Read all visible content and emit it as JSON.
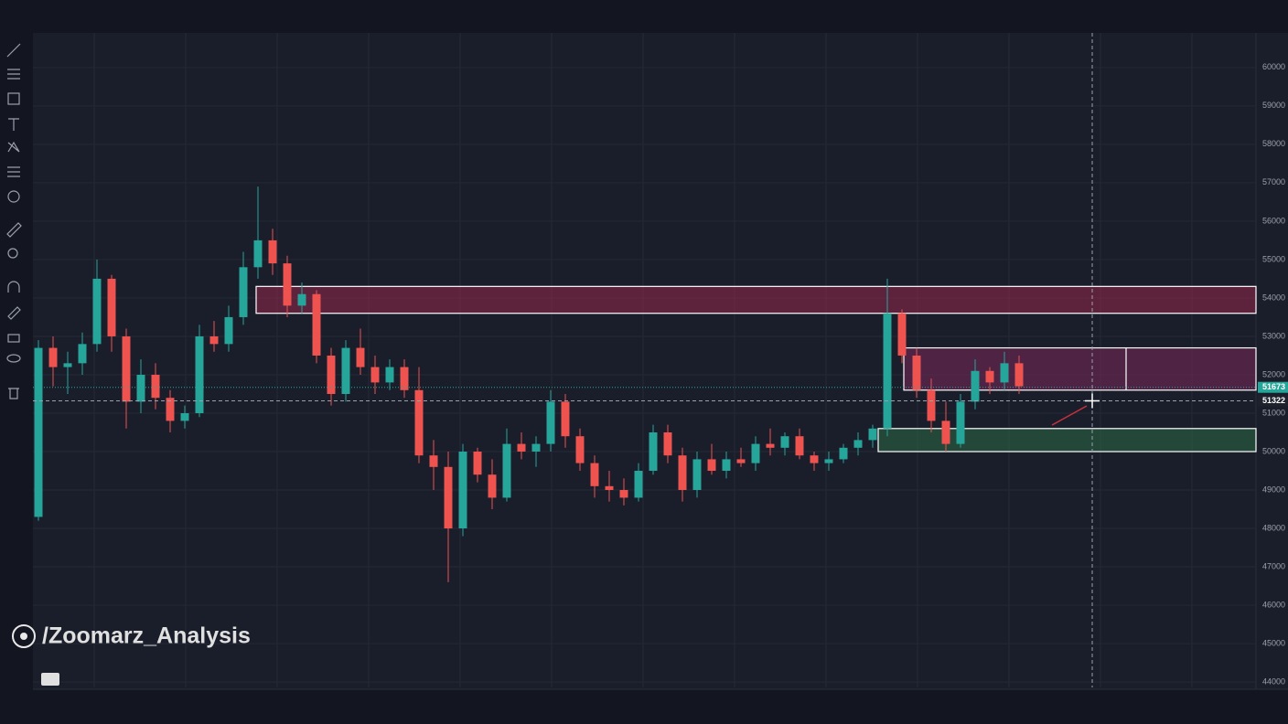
{
  "chart_data": {
    "type": "candlestick",
    "watermark": "/Zoomarz_Analysis",
    "up_color": "#26a69a",
    "down_color": "#ef5350",
    "grid": true,
    "ylim": [
      43860,
      60900
    ],
    "yticks": [
      44000,
      45000,
      46000,
      47000,
      48000,
      49000,
      50000,
      51000,
      52000,
      53000,
      54000,
      55000,
      56000,
      57000,
      58000,
      59000,
      60000
    ],
    "price_labels": [
      {
        "value": 51673,
        "color": "#26a69a"
      },
      {
        "value": 51322,
        "color": "#1e222d"
      }
    ],
    "zones": [
      {
        "top": 54300,
        "bottom": 53600,
        "color": "#b02a55"
      },
      {
        "top": 52700,
        "bottom": 51600,
        "color": "#8e2a63"
      },
      {
        "top": 50600,
        "bottom": 50000,
        "color": "#2e7a4a"
      }
    ],
    "candles": [
      {
        "o": 48300,
        "h": 52900,
        "l": 48200,
        "c": 52700
      },
      {
        "o": 52700,
        "h": 53000,
        "l": 51700,
        "c": 52200
      },
      {
        "o": 52200,
        "h": 52600,
        "l": 51500,
        "c": 52300
      },
      {
        "o": 52300,
        "h": 53100,
        "l": 52000,
        "c": 52800
      },
      {
        "o": 52800,
        "h": 55000,
        "l": 52600,
        "c": 54500
      },
      {
        "o": 54500,
        "h": 54600,
        "l": 52600,
        "c": 53000
      },
      {
        "o": 53000,
        "h": 53200,
        "l": 50600,
        "c": 51300
      },
      {
        "o": 51300,
        "h": 52400,
        "l": 51000,
        "c": 52000
      },
      {
        "o": 52000,
        "h": 52300,
        "l": 51100,
        "c": 51400
      },
      {
        "o": 51400,
        "h": 51600,
        "l": 50500,
        "c": 50800
      },
      {
        "o": 50800,
        "h": 51200,
        "l": 50600,
        "c": 51000
      },
      {
        "o": 51000,
        "h": 53300,
        "l": 50900,
        "c": 53000
      },
      {
        "o": 53000,
        "h": 53400,
        "l": 52600,
        "c": 52800
      },
      {
        "o": 52800,
        "h": 53800,
        "l": 52600,
        "c": 53500
      },
      {
        "o": 53500,
        "h": 55200,
        "l": 53300,
        "c": 54800
      },
      {
        "o": 54800,
        "h": 56900,
        "l": 54500,
        "c": 55500
      },
      {
        "o": 55500,
        "h": 55800,
        "l": 54600,
        "c": 54900
      },
      {
        "o": 54900,
        "h": 55100,
        "l": 53500,
        "c": 53800
      },
      {
        "o": 53800,
        "h": 54400,
        "l": 53600,
        "c": 54100
      },
      {
        "o": 54100,
        "h": 54200,
        "l": 52300,
        "c": 52500
      },
      {
        "o": 52500,
        "h": 52700,
        "l": 51200,
        "c": 51500
      },
      {
        "o": 51500,
        "h": 52900,
        "l": 51300,
        "c": 52700
      },
      {
        "o": 52700,
        "h": 53200,
        "l": 52000,
        "c": 52200
      },
      {
        "o": 52200,
        "h": 52500,
        "l": 51500,
        "c": 51800
      },
      {
        "o": 51800,
        "h": 52400,
        "l": 51600,
        "c": 52200
      },
      {
        "o": 52200,
        "h": 52400,
        "l": 51400,
        "c": 51600
      },
      {
        "o": 51600,
        "h": 52200,
        "l": 49700,
        "c": 49900
      },
      {
        "o": 49900,
        "h": 50300,
        "l": 49000,
        "c": 49600
      },
      {
        "o": 49600,
        "h": 50000,
        "l": 46600,
        "c": 48000
      },
      {
        "o": 48000,
        "h": 50200,
        "l": 47800,
        "c": 50000
      },
      {
        "o": 50000,
        "h": 50100,
        "l": 49200,
        "c": 49400
      },
      {
        "o": 49400,
        "h": 49800,
        "l": 48500,
        "c": 48800
      },
      {
        "o": 48800,
        "h": 50600,
        "l": 48700,
        "c": 50200
      },
      {
        "o": 50200,
        "h": 50500,
        "l": 49800,
        "c": 50000
      },
      {
        "o": 50000,
        "h": 50400,
        "l": 49600,
        "c": 50200
      },
      {
        "o": 50200,
        "h": 51600,
        "l": 50000,
        "c": 51300
      },
      {
        "o": 51300,
        "h": 51500,
        "l": 50100,
        "c": 50400
      },
      {
        "o": 50400,
        "h": 50600,
        "l": 49500,
        "c": 49700
      },
      {
        "o": 49700,
        "h": 49900,
        "l": 48800,
        "c": 49100
      },
      {
        "o": 49100,
        "h": 49500,
        "l": 48700,
        "c": 49000
      },
      {
        "o": 49000,
        "h": 49300,
        "l": 48600,
        "c": 48800
      },
      {
        "o": 48800,
        "h": 49700,
        "l": 48700,
        "c": 49500
      },
      {
        "o": 49500,
        "h": 50700,
        "l": 49400,
        "c": 50500
      },
      {
        "o": 50500,
        "h": 50700,
        "l": 49700,
        "c": 49900
      },
      {
        "o": 49900,
        "h": 50100,
        "l": 48700,
        "c": 49000
      },
      {
        "o": 49000,
        "h": 50000,
        "l": 48800,
        "c": 49800
      },
      {
        "o": 49800,
        "h": 50200,
        "l": 49400,
        "c": 49500
      },
      {
        "o": 49500,
        "h": 50000,
        "l": 49300,
        "c": 49800
      },
      {
        "o": 49800,
        "h": 50100,
        "l": 49600,
        "c": 49700
      },
      {
        "o": 49700,
        "h": 50400,
        "l": 49500,
        "c": 50200
      },
      {
        "o": 50200,
        "h": 50600,
        "l": 49900,
        "c": 50100
      },
      {
        "o": 50100,
        "h": 50500,
        "l": 49900,
        "c": 50400
      },
      {
        "o": 50400,
        "h": 50600,
        "l": 49800,
        "c": 49900
      },
      {
        "o": 49900,
        "h": 50000,
        "l": 49500,
        "c": 49700
      },
      {
        "o": 49700,
        "h": 50000,
        "l": 49500,
        "c": 49800
      },
      {
        "o": 49800,
        "h": 50200,
        "l": 49700,
        "c": 50100
      },
      {
        "o": 50100,
        "h": 50500,
        "l": 49900,
        "c": 50300
      },
      {
        "o": 50300,
        "h": 50700,
        "l": 50100,
        "c": 50600
      },
      {
        "o": 50600,
        "h": 54500,
        "l": 50400,
        "c": 53600
      },
      {
        "o": 53600,
        "h": 53700,
        "l": 52300,
        "c": 52500
      },
      {
        "o": 52500,
        "h": 52700,
        "l": 51400,
        "c": 51600
      },
      {
        "o": 51600,
        "h": 51900,
        "l": 50500,
        "c": 50800
      },
      {
        "o": 50800,
        "h": 51300,
        "l": 50000,
        "c": 50200
      },
      {
        "o": 50200,
        "h": 51500,
        "l": 50100,
        "c": 51300
      },
      {
        "o": 51300,
        "h": 52400,
        "l": 51100,
        "c": 52100
      },
      {
        "o": 52100,
        "h": 52200,
        "l": 51500,
        "c": 51800
      },
      {
        "o": 51800,
        "h": 52600,
        "l": 51600,
        "c": 52300
      },
      {
        "o": 52300,
        "h": 52500,
        "l": 51500,
        "c": 51700
      }
    ]
  }
}
